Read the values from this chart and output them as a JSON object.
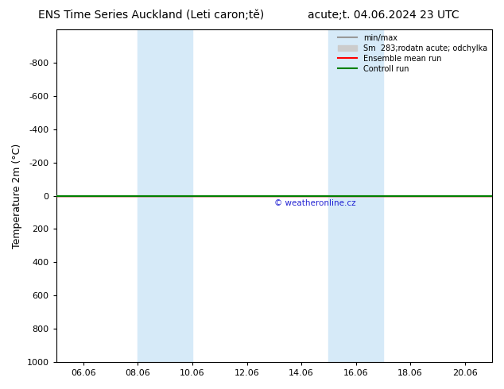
{
  "title_left": "ENS Time Series Auckland (Leti caron;tě)",
  "title_right": "acute;t. 04.06.2024 23 UTC",
  "ylabel": "Temperature 2m (°C)",
  "watermark": "© weatheronline.cz",
  "ylim_top": -1000,
  "ylim_bottom": 1000,
  "yticks": [
    -800,
    -600,
    -400,
    -200,
    0,
    200,
    400,
    600,
    800,
    1000
  ],
  "xtick_labels": [
    "06.06",
    "08.06",
    "10.06",
    "12.06",
    "14.06",
    "16.06",
    "18.06",
    "20.06"
  ],
  "xtick_positions": [
    1,
    3,
    5,
    7,
    9,
    11,
    13,
    15
  ],
  "xlim": [
    0,
    16
  ],
  "shaded_bands": [
    {
      "x_start": 3,
      "x_end": 5,
      "color": "#d6eaf8"
    },
    {
      "x_start": 10,
      "x_end": 12,
      "color": "#d6eaf8"
    }
  ],
  "ensemble_mean_color": "#ff0000",
  "control_run_color": "#008000",
  "minmax_color": "#999999",
  "stddev_color": "#cccccc",
  "background_color": "#ffffff",
  "plot_bg_color": "#ffffff",
  "title_fontsize": 10,
  "axis_fontsize": 9,
  "tick_fontsize": 8,
  "watermark_color": "#0000cc",
  "line_y": 0
}
